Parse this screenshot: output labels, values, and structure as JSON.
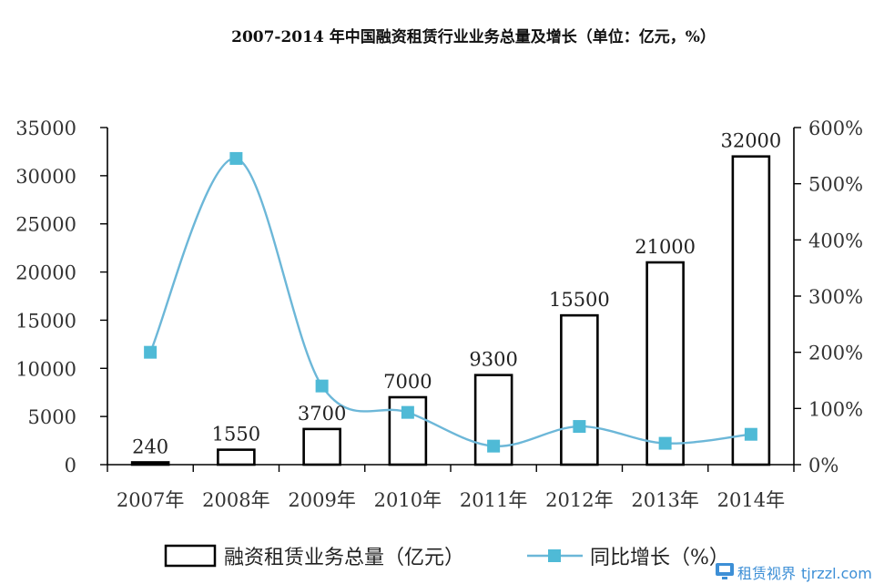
{
  "chart_data": {
    "type": "bar",
    "title": "2007-2014 年中国融资租赁行业业务总量及增长（单位：亿元，%）",
    "categories": [
      "2007年",
      "2008年",
      "2009年",
      "2010年",
      "2011年",
      "2012年",
      "2013年",
      "2014年"
    ],
    "series": [
      {
        "name": "融资租赁业务总量（亿元）",
        "type": "bar",
        "axis": "left",
        "values": [
          240,
          1550,
          3700,
          7000,
          9300,
          15500,
          21000,
          32000
        ],
        "labels": [
          "240",
          "1550",
          "3700",
          "7000",
          "9300",
          "15500",
          "21000",
          "32000"
        ]
      },
      {
        "name": "同比增长（%）",
        "type": "line",
        "smooth": true,
        "axis": "right",
        "values": [
          200,
          545,
          140,
          93,
          33,
          68,
          38,
          54
        ]
      }
    ],
    "y_left": {
      "ylim": [
        0,
        35000
      ],
      "ticks": [
        0,
        5000,
        10000,
        15000,
        20000,
        25000,
        30000,
        35000
      ],
      "tick_labels": [
        "0",
        "5000",
        "10000",
        "15000",
        "20000",
        "25000",
        "30000",
        "35000"
      ]
    },
    "y_right": {
      "ylim": [
        0,
        600
      ],
      "ticks": [
        0,
        100,
        200,
        300,
        400,
        500,
        600
      ],
      "tick_labels": [
        "0%",
        "100%",
        "200%",
        "300%",
        "400%",
        "500%",
        "600%"
      ]
    },
    "grid": false,
    "legend_position": "bottom",
    "colors": {
      "bar_fill": "#ffffff",
      "bar_stroke": "#000000",
      "line": "#6cb7d8",
      "marker": "#4fbad6",
      "axis": "#000000"
    }
  },
  "watermark": {
    "icon": "monitor-icon",
    "brand": "租赁视界",
    "url": "tjrzzl.com"
  }
}
